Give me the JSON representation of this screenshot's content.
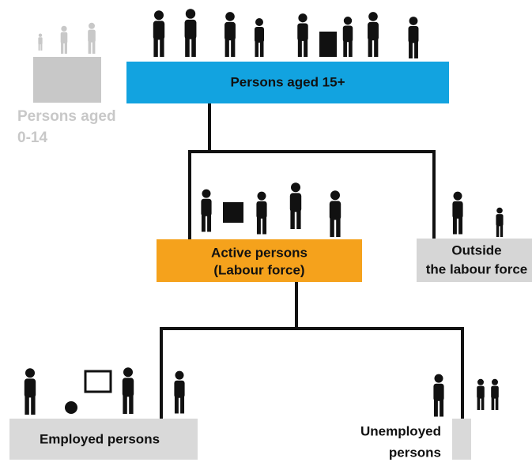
{
  "nodes": [
    {
      "lines": [
        "Persons aged 15+"
      ]
    },
    {
      "lines": [
        "Persons aged",
        "0-14"
      ]
    },
    {
      "lines": [
        "Active persons",
        "(Labour force)"
      ]
    },
    {
      "lines": [
        "Outside",
        "the labour force"
      ]
    },
    {
      "lines": [
        "Employed persons"
      ]
    },
    {
      "lines": [
        "Unemployed",
        "persons"
      ]
    }
  ]
}
